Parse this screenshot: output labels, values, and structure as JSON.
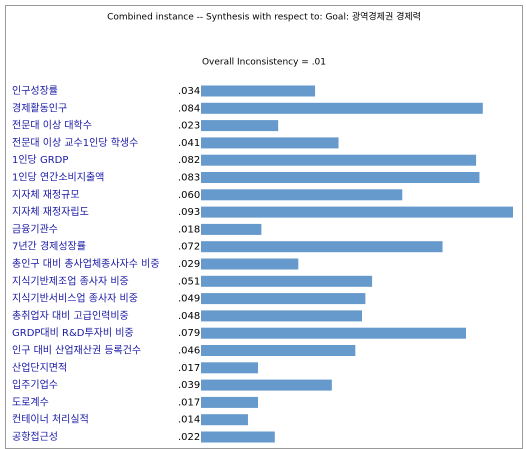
{
  "chart_data": {
    "type": "bar",
    "orientation": "horizontal",
    "title": "Combined instance -- Synthesis with respect to: Goal: 광역경제권 경제력",
    "subtitle": "Overall Inconsistency = .01",
    "categories": [
      "인구성장률",
      "경제활동인구",
      "전문대 이상 대학수",
      "전문대 이상 교수1인당 학생수",
      "1인당 GRDP",
      "1인당 연간소비지출액",
      "지자체 재정규모",
      "지자체 재정자립도",
      "금융기관수",
      "7년간 경제성장률",
      "총인구 대비 총사업체종사자수 비중",
      "지식기반제조업 종사자 비중",
      "지식기반서비스업 종사자 비중",
      "총취업자 대비 고급인력비중",
      "GRDP대비 R&D투자비 비중",
      "인구 대비 산업재산권 등록건수",
      "산업단지면적",
      "입주기업수",
      "도로계수",
      "컨테이너 처리실적",
      "공항접근성"
    ],
    "values": [
      0.034,
      0.084,
      0.023,
      0.041,
      0.082,
      0.083,
      0.06,
      0.093,
      0.018,
      0.072,
      0.029,
      0.051,
      0.049,
      0.048,
      0.079,
      0.046,
      0.017,
      0.039,
      0.017,
      0.014,
      0.022
    ],
    "value_labels": [
      ".034",
      ".084",
      ".023",
      ".041",
      ".082",
      ".083",
      ".060",
      ".093",
      ".018",
      ".072",
      ".029",
      ".051",
      ".049",
      ".048",
      ".079",
      ".046",
      ".017",
      ".039",
      ".017",
      ".014",
      ".022"
    ],
    "color": "#6699cc"
  }
}
